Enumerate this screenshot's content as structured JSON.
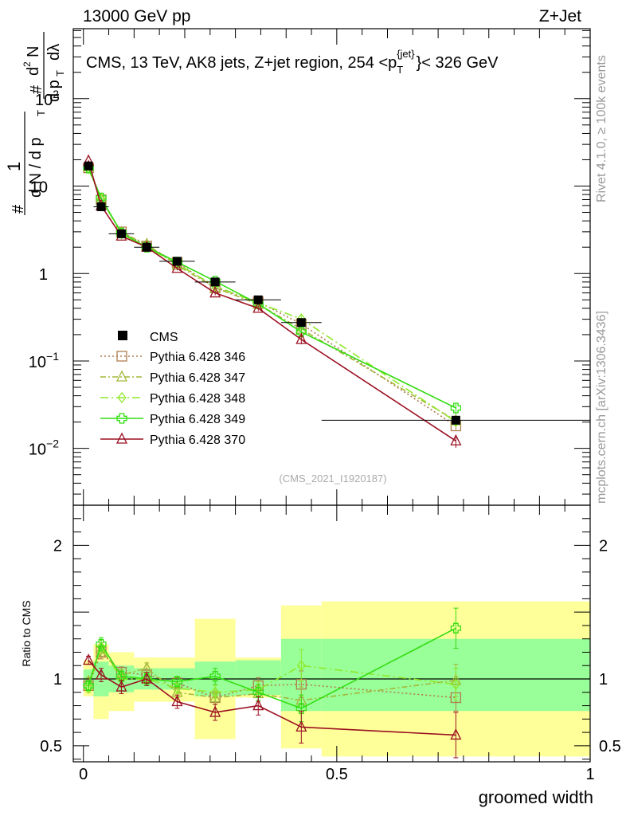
{
  "header": {
    "left": "13000 GeV pp",
    "right": "Z+Jet"
  },
  "side_text": {
    "rivet": "Rivet 4.1.0, ≥ 100k events",
    "mcplots": "mcplots.cern.ch [arXiv:1306.3436]"
  },
  "chart_data": {
    "type": "scatter",
    "title": "CMS, 13 TeV, AK8 jets, Z+jet region, 254 <p_T^{jet}< 326 GeV",
    "title_parts": {
      "main": "CMS, 13 TeV, AK8 jets, Z+jet region, 254 <p",
      "sub": "T",
      "sup": "{jet}",
      "tail": "}< 326 GeV"
    },
    "analysis_id": "(CMS_2021_I1920187)",
    "xlabel": "groomed width",
    "ylabel": {
      "hash1": "#",
      "one": "1",
      "den": "d N / d p",
      "den_sub": "T",
      "hash2": "#",
      "d2": "d",
      "two": "2",
      "N": "N",
      "dpt": "d p",
      "dpt_sub": "T",
      "dl": "dλ"
    },
    "ratio_ylabel": "Ratio to CMS",
    "xlim": [
      -0.02,
      1.0
    ],
    "ylim_main_log10": [
      -2.65,
      2.8
    ],
    "ylim_ratio": [
      0.38,
      2.3
    ],
    "x_ticks": [
      {
        "v": 0,
        "label": "0"
      },
      {
        "v": 0.5,
        "label": "0.5"
      },
      {
        "v": 1,
        "label": "1"
      }
    ],
    "y_ticks_main": [
      {
        "exp": -2,
        "base": "10",
        "sup": "−2"
      },
      {
        "exp": -1,
        "base": "10",
        "sup": "−1"
      },
      {
        "exp": 0,
        "base": "1",
        "sup": ""
      },
      {
        "exp": 1,
        "base": "10",
        "sup": ""
      },
      {
        "exp": 2,
        "base": "10",
        "sup": "2"
      }
    ],
    "y_ticks_ratio": [
      {
        "v": 0.5,
        "label": "0.5"
      },
      {
        "v": 1,
        "label": "1"
      },
      {
        "v": 2,
        "label": "2"
      }
    ],
    "bins": [
      {
        "lo": 0.0,
        "hi": 0.02
      },
      {
        "lo": 0.02,
        "hi": 0.05
      },
      {
        "lo": 0.05,
        "hi": 0.1
      },
      {
        "lo": 0.1,
        "hi": 0.15
      },
      {
        "lo": 0.15,
        "hi": 0.22
      },
      {
        "lo": 0.22,
        "hi": 0.3
      },
      {
        "lo": 0.3,
        "hi": 0.39
      },
      {
        "lo": 0.39,
        "hi": 0.47
      },
      {
        "lo": 0.47,
        "hi": 1.0
      }
    ],
    "x": [
      0.01,
      0.035,
      0.075,
      0.125,
      0.185,
      0.26,
      0.345,
      0.43,
      0.735
    ],
    "data": {
      "name": "CMS",
      "values": [
        17.0,
        5.8,
        2.85,
        2.0,
        1.38,
        0.8,
        0.5,
        0.275,
        0.021
      ]
    },
    "band_green": [
      {
        "lo": 0.93,
        "hi": 1.07
      },
      {
        "lo": 0.87,
        "hi": 1.13
      },
      {
        "lo": 0.9,
        "hi": 1.1
      },
      {
        "lo": 0.92,
        "hi": 1.08
      },
      {
        "lo": 0.92,
        "hi": 1.08
      },
      {
        "lo": 0.87,
        "hi": 1.13
      },
      {
        "lo": 0.88,
        "hi": 1.14
      },
      {
        "lo": 0.76,
        "hi": 1.3
      },
      {
        "lo": 0.76,
        "hi": 1.3
      }
    ],
    "band_yellow": [
      {
        "lo": 0.87,
        "hi": 1.14
      },
      {
        "lo": 0.7,
        "hi": 1.26
      },
      {
        "lo": 0.76,
        "hi": 1.2
      },
      {
        "lo": 0.83,
        "hi": 1.16
      },
      {
        "lo": 0.83,
        "hi": 1.16
      },
      {
        "lo": 0.55,
        "hi": 1.45
      },
      {
        "lo": 0.86,
        "hi": 1.16
      },
      {
        "lo": 0.48,
        "hi": 1.55
      },
      {
        "lo": 0.42,
        "hi": 1.58
      }
    ],
    "series": [
      {
        "name": "Pythia 6.428 346",
        "color": "#b07d4d",
        "marker": "square",
        "dash": "2,3",
        "ratio": [
          0.95,
          1.2,
          1.05,
          1.03,
          0.97,
          0.86,
          0.95,
          0.96,
          0.86
        ],
        "err": [
          0.03,
          0.05,
          0.04,
          0.04,
          0.04,
          0.05,
          0.06,
          0.1,
          0.1
        ]
      },
      {
        "name": "Pythia 6.428 347",
        "color": "#a4b83a",
        "marker": "triangle",
        "dash": "7,3,2,3",
        "ratio": [
          0.98,
          1.22,
          1.03,
          1.08,
          0.9,
          0.86,
          0.89,
          0.84,
          0.99
        ],
        "err": [
          0.03,
          0.05,
          0.04,
          0.04,
          0.04,
          0.05,
          0.06,
          0.1,
          0.12
        ]
      },
      {
        "name": "Pythia 6.428 348",
        "color": "#8ee82a",
        "marker": "diamond",
        "dash": "10,4,2,4",
        "ratio": [
          0.93,
          1.24,
          1.0,
          1.0,
          0.93,
          0.9,
          0.92,
          1.1,
          0.96
        ],
        "err": [
          0.03,
          0.05,
          0.04,
          0.04,
          0.04,
          0.05,
          0.06,
          0.12,
          0.12
        ]
      },
      {
        "name": "Pythia 6.428 349",
        "color": "#33dd11",
        "marker": "cross",
        "dash": "",
        "ratio": [
          0.95,
          1.26,
          1.02,
          1.0,
          0.98,
          1.02,
          0.9,
          0.78,
          1.38
        ],
        "err": [
          0.03,
          0.05,
          0.04,
          0.04,
          0.04,
          0.06,
          0.06,
          0.1,
          0.15
        ]
      },
      {
        "name": "Pythia 6.428 370",
        "color": "#9b1021",
        "marker": "triangle",
        "dash": "",
        "ratio": [
          1.14,
          1.03,
          0.94,
          1.0,
          0.83,
          0.75,
          0.8,
          0.64,
          0.58
        ],
        "err": [
          0.03,
          0.05,
          0.05,
          0.05,
          0.05,
          0.06,
          0.07,
          0.12,
          0.17
        ]
      }
    ]
  }
}
